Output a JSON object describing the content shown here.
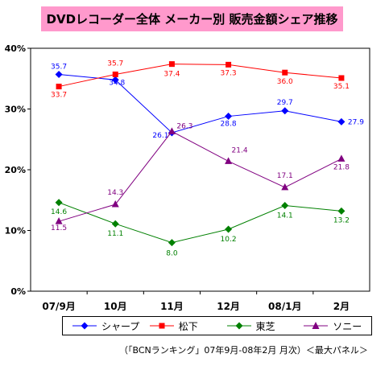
{
  "title": "DVDレコーダー全体 メーカー別 販売金額シェア推移",
  "source_note": "（「BCNランキング」07年9月-08年2月 月次）＜最大パネル＞",
  "chart_data": {
    "type": "line",
    "title": "DVDレコーダー全体 メーカー別 販売金額シェア推移",
    "categories": [
      "07/9月",
      "10月",
      "11月",
      "12月",
      "08/1月",
      "2月"
    ],
    "y_ticks": [
      "0%",
      "10%",
      "20%",
      "30%",
      "40%"
    ],
    "ylim": [
      0,
      40
    ],
    "grid": false,
    "legend_position": "bottom",
    "series": [
      {
        "name": "シャープ",
        "color": "#0000ff",
        "marker": "diamond",
        "values": [
          35.7,
          34.8,
          26.1,
          28.8,
          29.7,
          27.9
        ],
        "labels": [
          "35.7",
          "34.8",
          "26.1",
          "28.8",
          "29.7",
          "27.9"
        ]
      },
      {
        "name": "松下",
        "color": "#ff0000",
        "marker": "square",
        "values": [
          33.7,
          35.7,
          37.4,
          37.3,
          36.0,
          35.1
        ],
        "labels": [
          "33.7",
          "35.7",
          "37.4",
          "37.3",
          "36.0",
          "35.1"
        ]
      },
      {
        "name": "東芝",
        "color": "#008000",
        "marker": "diamond",
        "values": [
          14.6,
          11.1,
          8.0,
          10.2,
          14.1,
          13.2
        ],
        "labels": [
          "14.6",
          "11.1",
          "8.0",
          "10.2",
          "14.1",
          "13.2"
        ]
      },
      {
        "name": "ソニー",
        "color": "#800080",
        "marker": "triangle",
        "values": [
          11.5,
          14.3,
          26.3,
          21.4,
          17.1,
          21.8
        ],
        "labels": [
          "11.5",
          "14.3",
          "26.3",
          "21.4",
          "17.1",
          "21.8"
        ]
      }
    ]
  }
}
